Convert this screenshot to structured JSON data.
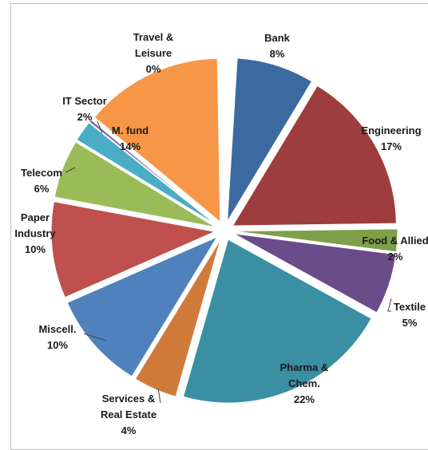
{
  "chart_data": {
    "type": "pie",
    "exploded": true,
    "categories": [
      "Bank",
      "Engineering",
      "Food & Allied",
      "Textile",
      "Pharma & Chem.",
      "Services & Real Estate",
      "Miscell.",
      "Paper Industry",
      "Telecom",
      "IT Sector",
      "Travel & Leisure",
      "M. fund"
    ],
    "values": [
      8,
      17,
      2,
      5,
      22,
      4,
      10,
      10,
      6,
      2,
      0,
      14
    ],
    "slices": [
      {
        "name": "Bank",
        "value": 8,
        "start_deg": 3.5,
        "end_deg": 31.1,
        "color": "#3b6aa0",
        "label_lines": [
          "Bank",
          "8%"
        ]
      },
      {
        "name": "Engineering",
        "value": 17,
        "start_deg": 31.1,
        "end_deg": 89.2,
        "color": "#9e3d3d",
        "label_lines": [
          "Engineering",
          "17%"
        ]
      },
      {
        "name": "Food & Allied",
        "value": 2,
        "start_deg": 89.2,
        "end_deg": 97.3,
        "color": "#7ea04a",
        "label_lines": [
          "Food & Allied",
          "2%"
        ]
      },
      {
        "name": "Textile",
        "value": 5,
        "start_deg": 97.3,
        "end_deg": 118.9,
        "color": "#6a4c8a",
        "label_lines": [
          "Textile",
          "5%"
        ]
      },
      {
        "name": "Pharma & Chem.",
        "value": 22,
        "start_deg": 118.9,
        "end_deg": 195.9,
        "color": "#3a8fa3",
        "label_lines": [
          "Pharma &",
          "Chem.",
          "22%"
        ]
      },
      {
        "name": "Services & Real Estate",
        "value": 4,
        "start_deg": 195.9,
        "end_deg": 211.4,
        "color": "#d07a3a",
        "label_lines": [
          "Services &",
          "Real Estate",
          "4%"
        ]
      },
      {
        "name": "Miscell.",
        "value": 10,
        "start_deg": 211.4,
        "end_deg": 246.3,
        "color": "#4f81bd",
        "label_lines": [
          "Miscell.",
          "10%"
        ]
      },
      {
        "name": "Paper Industry",
        "value": 10,
        "start_deg": 246.3,
        "end_deg": 280.6,
        "color": "#c0504d",
        "label_lines": [
          "Paper",
          "Industry",
          "10%"
        ]
      },
      {
        "name": "Telecom",
        "value": 6,
        "start_deg": 280.6,
        "end_deg": 301.4,
        "color": "#9bbb59",
        "label_lines": [
          "Telecom",
          "6%"
        ]
      },
      {
        "name": "IT Sector",
        "value": 2,
        "start_deg": 301.4,
        "end_deg": 308.8,
        "color": "#4bacc6",
        "label_lines": [
          "IT Sector",
          "2%"
        ]
      },
      {
        "name": "Travel & Leisure",
        "value": 0,
        "start_deg": 308.8,
        "end_deg": 309.8,
        "color": "#8064a2",
        "label_lines": [
          "Travel &",
          "Leisure",
          "0%"
        ]
      },
      {
        "name": "M. fund",
        "value": 14,
        "start_deg": 309.8,
        "end_deg": 359.0,
        "color": "#f79646",
        "label_lines": [
          "M. fund",
          "14%"
        ]
      }
    ],
    "title": "",
    "legend": "none"
  }
}
